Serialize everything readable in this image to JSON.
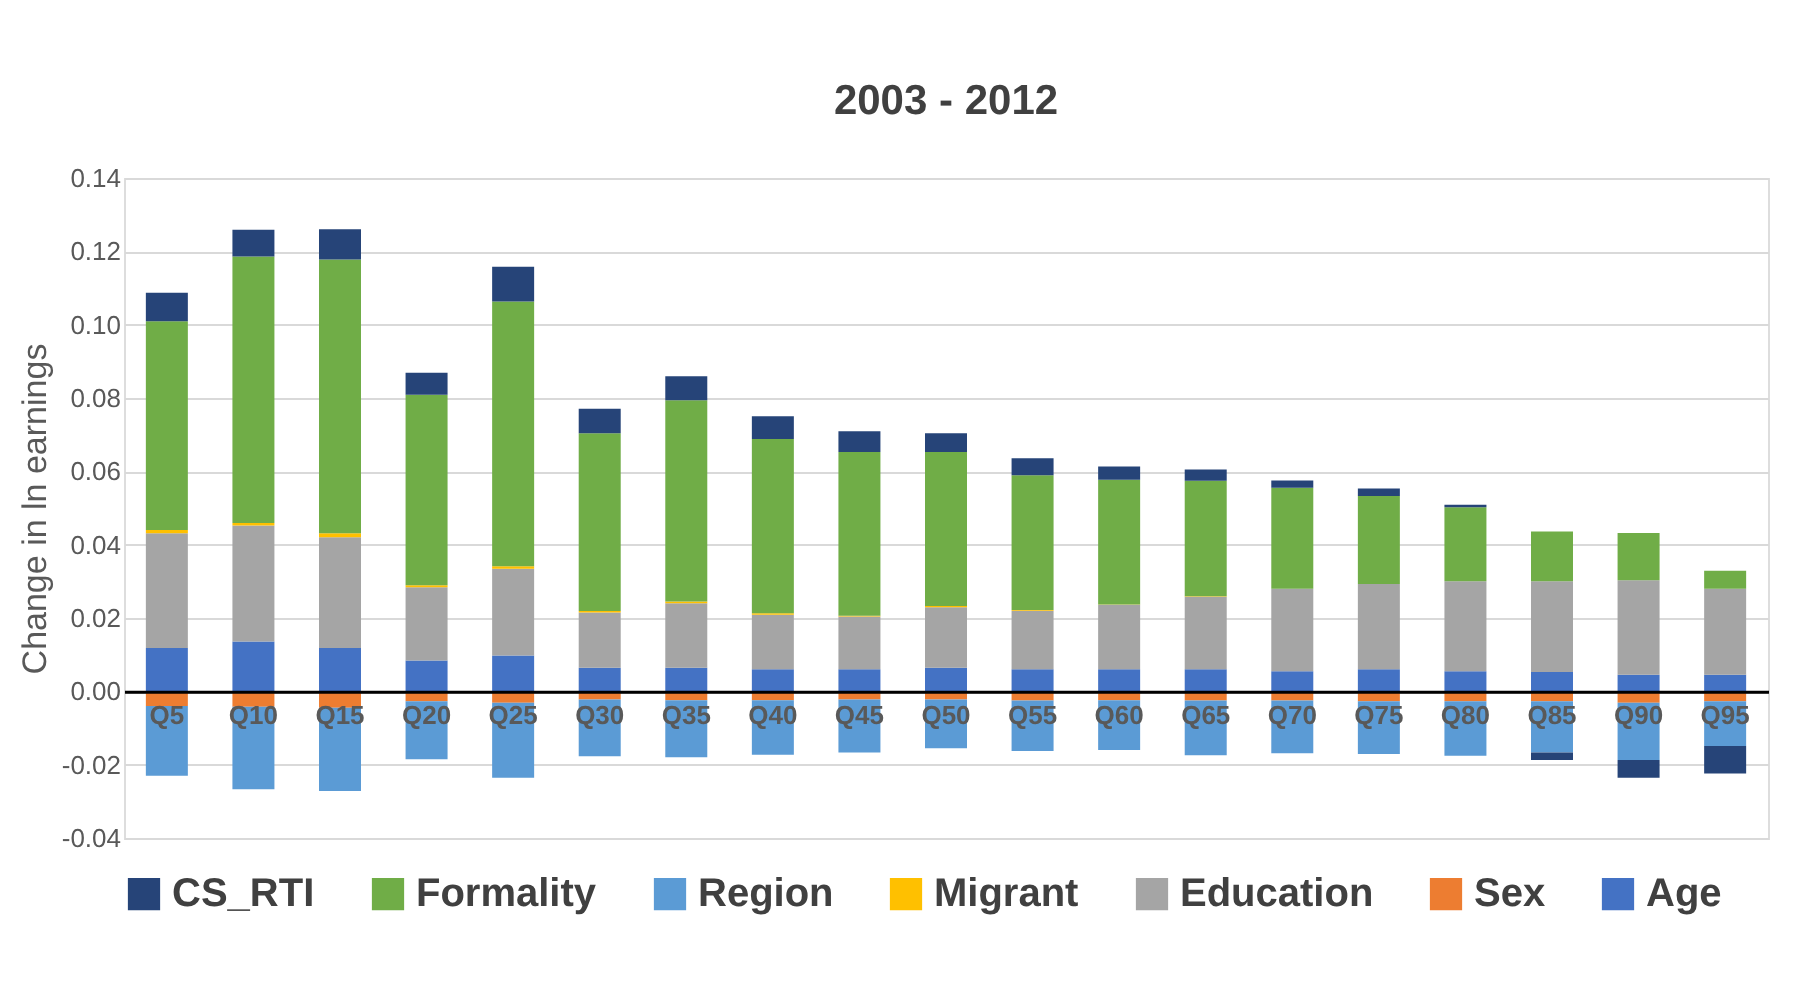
{
  "chart_data": {
    "type": "bar",
    "stacked": true,
    "title": "2003 - 2012",
    "ylabel": "Change in ln earnings",
    "categories": [
      "Q5",
      "Q10",
      "Q15",
      "Q20",
      "Q25",
      "Q30",
      "Q35",
      "Q40",
      "Q45",
      "Q50",
      "Q55",
      "Q60",
      "Q65",
      "Q70",
      "Q75",
      "Q80",
      "Q85",
      "Q90",
      "Q95"
    ],
    "series": [
      {
        "name": "Age",
        "color": "#4472c4",
        "values": [
          0.0118,
          0.0136,
          0.0118,
          0.0084,
          0.0098,
          0.0064,
          0.0064,
          0.006,
          0.006,
          0.0064,
          0.006,
          0.006,
          0.006,
          0.0055,
          0.006,
          0.0055,
          0.0053,
          0.0045,
          0.0045
        ]
      },
      {
        "name": "Sex",
        "color": "#ed7d31",
        "values": [
          -0.004,
          -0.0042,
          -0.0045,
          -0.0027,
          -0.0031,
          -0.0022,
          -0.0024,
          -0.0024,
          -0.0022,
          -0.0022,
          -0.0025,
          -0.0024,
          -0.0025,
          -0.0025,
          -0.0027,
          -0.0027,
          -0.0027,
          -0.0031,
          -0.0027
        ]
      },
      {
        "name": "Education",
        "color": "#a5a5a5",
        "values": [
          0.0313,
          0.0316,
          0.0302,
          0.02,
          0.0236,
          0.0151,
          0.0176,
          0.0149,
          0.0144,
          0.0165,
          0.016,
          0.0176,
          0.0198,
          0.0225,
          0.0233,
          0.0245,
          0.0247,
          0.0258,
          0.0235
        ]
      },
      {
        "name": "Migrant",
        "color": "#ffc000",
        "values": [
          0.0009,
          0.0007,
          0.0011,
          0.0005,
          0.0007,
          0.0004,
          0.0005,
          0.0004,
          0.0002,
          0.0004,
          0.0002,
          0.0001,
          0.0001,
          0,
          0,
          0,
          0,
          0,
          0
        ]
      },
      {
        "name": "Region",
        "color": "#5b9bd5",
        "values": [
          -0.019,
          -0.0225,
          -0.0227,
          -0.0158,
          -0.0205,
          -0.0155,
          -0.0156,
          -0.0149,
          -0.0145,
          -0.0133,
          -0.0138,
          -0.0136,
          -0.0149,
          -0.0144,
          -0.0144,
          -0.0149,
          -0.014,
          -0.0156,
          -0.0122
        ]
      },
      {
        "name": "Formality",
        "color": "#70ad47",
        "values": [
          0.0569,
          0.0727,
          0.0747,
          0.052,
          0.0722,
          0.0485,
          0.0549,
          0.0475,
          0.0447,
          0.042,
          0.0367,
          0.034,
          0.0315,
          0.0275,
          0.024,
          0.0202,
          0.0136,
          0.0129,
          0.0049
        ]
      },
      {
        "name": "CS_RTI",
        "color": "#264478",
        "values": [
          0.0078,
          0.0073,
          0.0082,
          0.006,
          0.0095,
          0.0067,
          0.0065,
          0.0062,
          0.0056,
          0.0051,
          0.0047,
          0.0036,
          0.0031,
          0.002,
          0.002,
          0.0007,
          -0.002,
          -0.0049,
          -0.0075
        ]
      }
    ],
    "ylim": [
      -0.04,
      0.14
    ],
    "yticks": [
      {
        "value": -0.04,
        "label": "-0.04"
      },
      {
        "value": -0.02,
        "label": "-0.02"
      },
      {
        "value": 0,
        "label": "0.00"
      },
      {
        "value": 0.02,
        "label": "0.02"
      },
      {
        "value": 0.04,
        "label": "0.04"
      },
      {
        "value": 0.06,
        "label": "0.06"
      },
      {
        "value": 0.08,
        "label": "0.08"
      },
      {
        "value": 0.1,
        "label": "0.10"
      },
      {
        "value": 0.12,
        "label": "0.12"
      },
      {
        "value": 0.14,
        "label": "0.14"
      }
    ],
    "grid": "y",
    "legend": "bottom"
  }
}
